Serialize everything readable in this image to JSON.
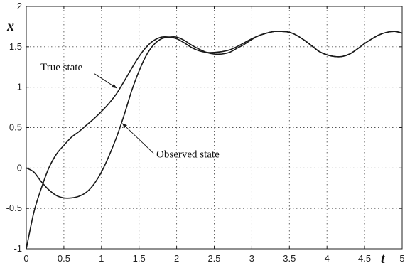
{
  "chart_data": {
    "type": "line",
    "title": "",
    "xlabel": "t",
    "ylabel": "x",
    "xlim": [
      0,
      5
    ],
    "ylim": [
      -1,
      2
    ],
    "xticks": [
      0,
      0.5,
      1,
      1.5,
      2,
      2.5,
      3,
      3.5,
      4,
      4.5,
      5
    ],
    "xtick_labels": [
      "0",
      "0.5",
      "1",
      "1.5",
      "2",
      "2.5",
      "3",
      "3.5",
      "4",
      "4.5",
      "5"
    ],
    "yticks": [
      -1,
      -0.5,
      0,
      0.5,
      1,
      1.5,
      2
    ],
    "ytick_labels": [
      "-1",
      "-0.5",
      "0",
      "0.5",
      "1",
      "1.5",
      "2"
    ],
    "grid": true,
    "series": [
      {
        "x": [
          0,
          0.1,
          0.2,
          0.3,
          0.4,
          0.5,
          0.6,
          0.7,
          0.8,
          0.9,
          1.0,
          1.1,
          1.2,
          1.3,
          1.4,
          1.5,
          1.6,
          1.7,
          1.8,
          1.9,
          2.0,
          2.1,
          2.2,
          2.3,
          2.4,
          2.5,
          2.6,
          2.7,
          2.8,
          2.9,
          3.0,
          3.1,
          3.2,
          3.3,
          3.4,
          3.5,
          3.6,
          3.7,
          3.8,
          3.9,
          4.0,
          4.1,
          4.2,
          4.3,
          4.4,
          4.5,
          4.6,
          4.7,
          4.8,
          4.9,
          5.0
        ],
        "values": [
          -1.0,
          -0.55,
          -0.25,
          0.0,
          0.17,
          0.28,
          0.38,
          0.45,
          0.53,
          0.61,
          0.7,
          0.8,
          0.92,
          1.07,
          1.23,
          1.38,
          1.5,
          1.58,
          1.62,
          1.62,
          1.6,
          1.55,
          1.49,
          1.45,
          1.43,
          1.43,
          1.44,
          1.46,
          1.5,
          1.55,
          1.6,
          1.64,
          1.67,
          1.69,
          1.69,
          1.68,
          1.64,
          1.58,
          1.51,
          1.44,
          1.4,
          1.38,
          1.38,
          1.41,
          1.47,
          1.54,
          1.6,
          1.65,
          1.68,
          1.69,
          1.67
        ]
      },
      {
        "x": [
          0,
          0.1,
          0.2,
          0.3,
          0.4,
          0.5,
          0.6,
          0.7,
          0.8,
          0.9,
          1.0,
          1.1,
          1.2,
          1.3,
          1.4,
          1.5,
          1.6,
          1.7,
          1.8,
          1.9,
          2.0,
          2.1,
          2.2,
          2.3,
          2.4,
          2.5,
          2.6,
          2.7,
          2.8,
          2.9,
          3.0,
          3.1,
          3.2,
          3.3,
          3.4,
          3.5,
          3.6,
          3.7,
          3.8,
          3.9,
          4.0,
          4.1,
          4.2,
          4.3,
          4.4,
          4.5,
          4.6,
          4.7,
          4.8,
          4.9,
          5.0
        ],
        "values": [
          0.0,
          -0.05,
          -0.17,
          -0.27,
          -0.34,
          -0.37,
          -0.37,
          -0.35,
          -0.3,
          -0.2,
          -0.05,
          0.15,
          0.38,
          0.65,
          0.95,
          1.2,
          1.4,
          1.53,
          1.6,
          1.62,
          1.62,
          1.58,
          1.52,
          1.47,
          1.43,
          1.41,
          1.41,
          1.43,
          1.48,
          1.53,
          1.59,
          1.64,
          1.67,
          1.69,
          1.69,
          1.68,
          1.64,
          1.58,
          1.51,
          1.44,
          1.4,
          1.38,
          1.38,
          1.41,
          1.47,
          1.54,
          1.6,
          1.65,
          1.68,
          1.69,
          1.67
        ]
      }
    ],
    "annotations": [
      {
        "text": "True state",
        "series_index": 0,
        "text_at": [
          0.19,
          1.21
        ],
        "points_to": [
          1.2,
          0.99
        ]
      },
      {
        "text": "Observed state",
        "series_index": 1,
        "text_at": [
          1.73,
          0.13
        ],
        "points_to": [
          1.28,
          0.55
        ]
      }
    ]
  }
}
